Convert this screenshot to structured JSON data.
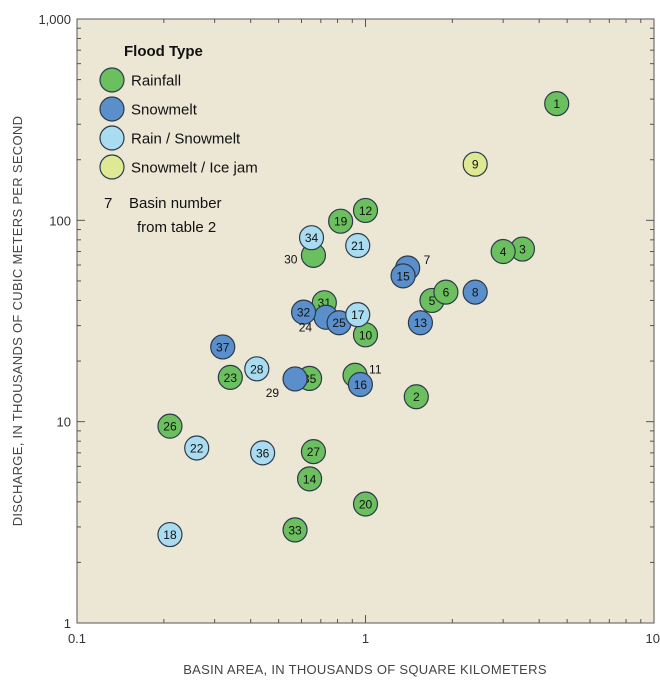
{
  "chart_data": {
    "type": "scatter",
    "scale": {
      "x": "log",
      "y": "log"
    },
    "xlim": [
      0.1,
      10
    ],
    "ylim": [
      1,
      1000
    ],
    "x_ticks": [
      "0.1",
      "1",
      "10"
    ],
    "y_ticks": [
      "1",
      "10",
      "100",
      "1,000"
    ],
    "xlabel": "BASIN AREA, IN THOUSANDS OF SQUARE KILOMETERS",
    "ylabel": "DISCHARGE, IN THOUSANDS OF CUBIC METERS PER SECOND",
    "grid": false,
    "legend": {
      "title": "Flood Type",
      "position": "top-left",
      "note_number": "7",
      "note_text": [
        "Basin number",
        "from table 2"
      ]
    },
    "colors": {
      "plot_bg": "#ece7d5",
      "Rainfall": "#6cbf5f",
      "Snowmelt": "#5b8fcb",
      "Rain / Snowmelt": "#a9dcf0",
      "Snowmelt / Ice jam": "#dfe893",
      "marker_edge": "#2b3a4a"
    },
    "series": [
      {
        "name": "Rainfall",
        "points": [
          {
            "id": "1",
            "x": 4.6,
            "y": 380
          },
          {
            "id": "2",
            "x": 1.5,
            "y": 13.3
          },
          {
            "id": "3",
            "x": 3.5,
            "y": 72
          },
          {
            "id": "4",
            "x": 3.0,
            "y": 70
          },
          {
            "id": "5",
            "x": 1.7,
            "y": 40
          },
          {
            "id": "6",
            "x": 1.9,
            "y": 44
          },
          {
            "id": "10",
            "x": 1.0,
            "y": 27
          },
          {
            "id": "11",
            "x": 0.92,
            "y": 17
          },
          {
            "id": "12",
            "x": 1.0,
            "y": 112
          },
          {
            "id": "14",
            "x": 0.64,
            "y": 5.2
          },
          {
            "id": "19",
            "x": 0.82,
            "y": 99
          },
          {
            "id": "20",
            "x": 1.0,
            "y": 3.9
          },
          {
            "id": "23",
            "x": 0.34,
            "y": 16.6
          },
          {
            "id": "26",
            "x": 0.21,
            "y": 9.5
          },
          {
            "id": "27",
            "x": 0.66,
            "y": 7.1
          },
          {
            "id": "30",
            "x": 0.66,
            "y": 67
          },
          {
            "id": "31",
            "x": 0.72,
            "y": 39
          },
          {
            "id": "33",
            "x": 0.57,
            "y": 2.9
          },
          {
            "id": "35",
            "x": 0.64,
            "y": 16.4
          }
        ]
      },
      {
        "name": "Snowmelt",
        "points": [
          {
            "id": "7",
            "x": 1.4,
            "y": 58
          },
          {
            "id": "8",
            "x": 2.4,
            "y": 44
          },
          {
            "id": "13",
            "x": 1.55,
            "y": 31
          },
          {
            "id": "15",
            "x": 1.35,
            "y": 53
          },
          {
            "id": "16",
            "x": 0.96,
            "y": 15.3
          },
          {
            "id": "24",
            "x": 0.73,
            "y": 33
          },
          {
            "id": "25",
            "x": 0.81,
            "y": 31
          },
          {
            "id": "29",
            "x": 0.57,
            "y": 16.3
          },
          {
            "id": "32",
            "x": 0.61,
            "y": 35
          },
          {
            "id": "37",
            "x": 0.32,
            "y": 23.5
          }
        ]
      },
      {
        "name": "Rain / Snowmelt",
        "points": [
          {
            "id": "17",
            "x": 0.94,
            "y": 34
          },
          {
            "id": "18",
            "x": 0.21,
            "y": 2.75
          },
          {
            "id": "21",
            "x": 0.94,
            "y": 75
          },
          {
            "id": "22",
            "x": 0.26,
            "y": 7.4
          },
          {
            "id": "28",
            "x": 0.42,
            "y": 18.3
          },
          {
            "id": "34",
            "x": 0.65,
            "y": 82
          },
          {
            "id": "36",
            "x": 0.44,
            "y": 7.0
          }
        ]
      },
      {
        "name": "Snowmelt / Ice jam",
        "points": [
          {
            "id": "9",
            "x": 2.4,
            "y": 190
          }
        ]
      }
    ],
    "unlabeled_markers": [
      "7",
      "24",
      "29",
      "30",
      "11"
    ]
  }
}
